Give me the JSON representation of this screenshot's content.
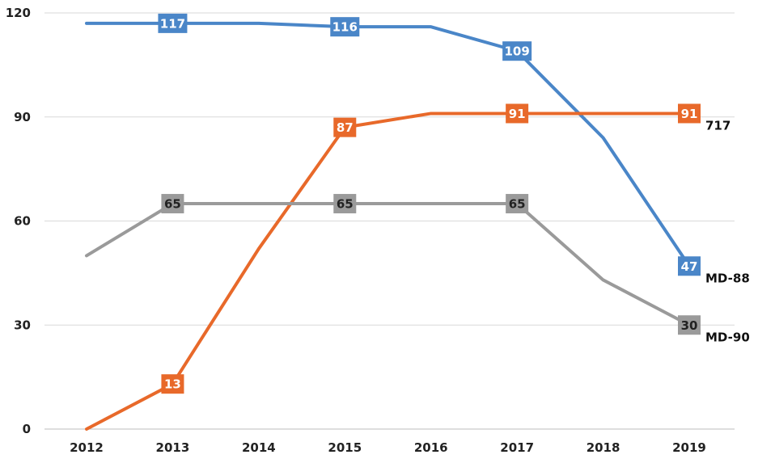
{
  "chart_data": {
    "type": "line",
    "title": "",
    "xlabel": "",
    "ylabel": "",
    "categories": [
      "2012",
      "2013",
      "2014",
      "2015",
      "2016",
      "2017",
      "2018",
      "2019"
    ],
    "ylim": [
      0,
      120
    ],
    "yticks": [
      "0",
      "30",
      "60",
      "90",
      "120"
    ],
    "grid": "horizontal",
    "series": [
      {
        "name": "MD-88",
        "color": "#4a86c8",
        "values": [
          117,
          117,
          117,
          116,
          116,
          109,
          84,
          47
        ],
        "labels": [
          null,
          "117",
          null,
          "116",
          null,
          "109",
          null,
          "47"
        ],
        "label_text_color": "#ffffff"
      },
      {
        "name": "717",
        "color": "#e8692a",
        "values": [
          0,
          13,
          52,
          87,
          91,
          91,
          91,
          91
        ],
        "labels": [
          null,
          "13",
          null,
          "87",
          null,
          "91",
          null,
          "91"
        ],
        "label_text_color": "#ffffff"
      },
      {
        "name": "MD-90",
        "color": "#9a9a9a",
        "values": [
          50,
          65,
          65,
          65,
          65,
          65,
          43,
          30
        ],
        "labels": [
          null,
          "65",
          null,
          "65",
          null,
          "65",
          null,
          "30"
        ],
        "label_text_color": "#222222"
      }
    ]
  }
}
